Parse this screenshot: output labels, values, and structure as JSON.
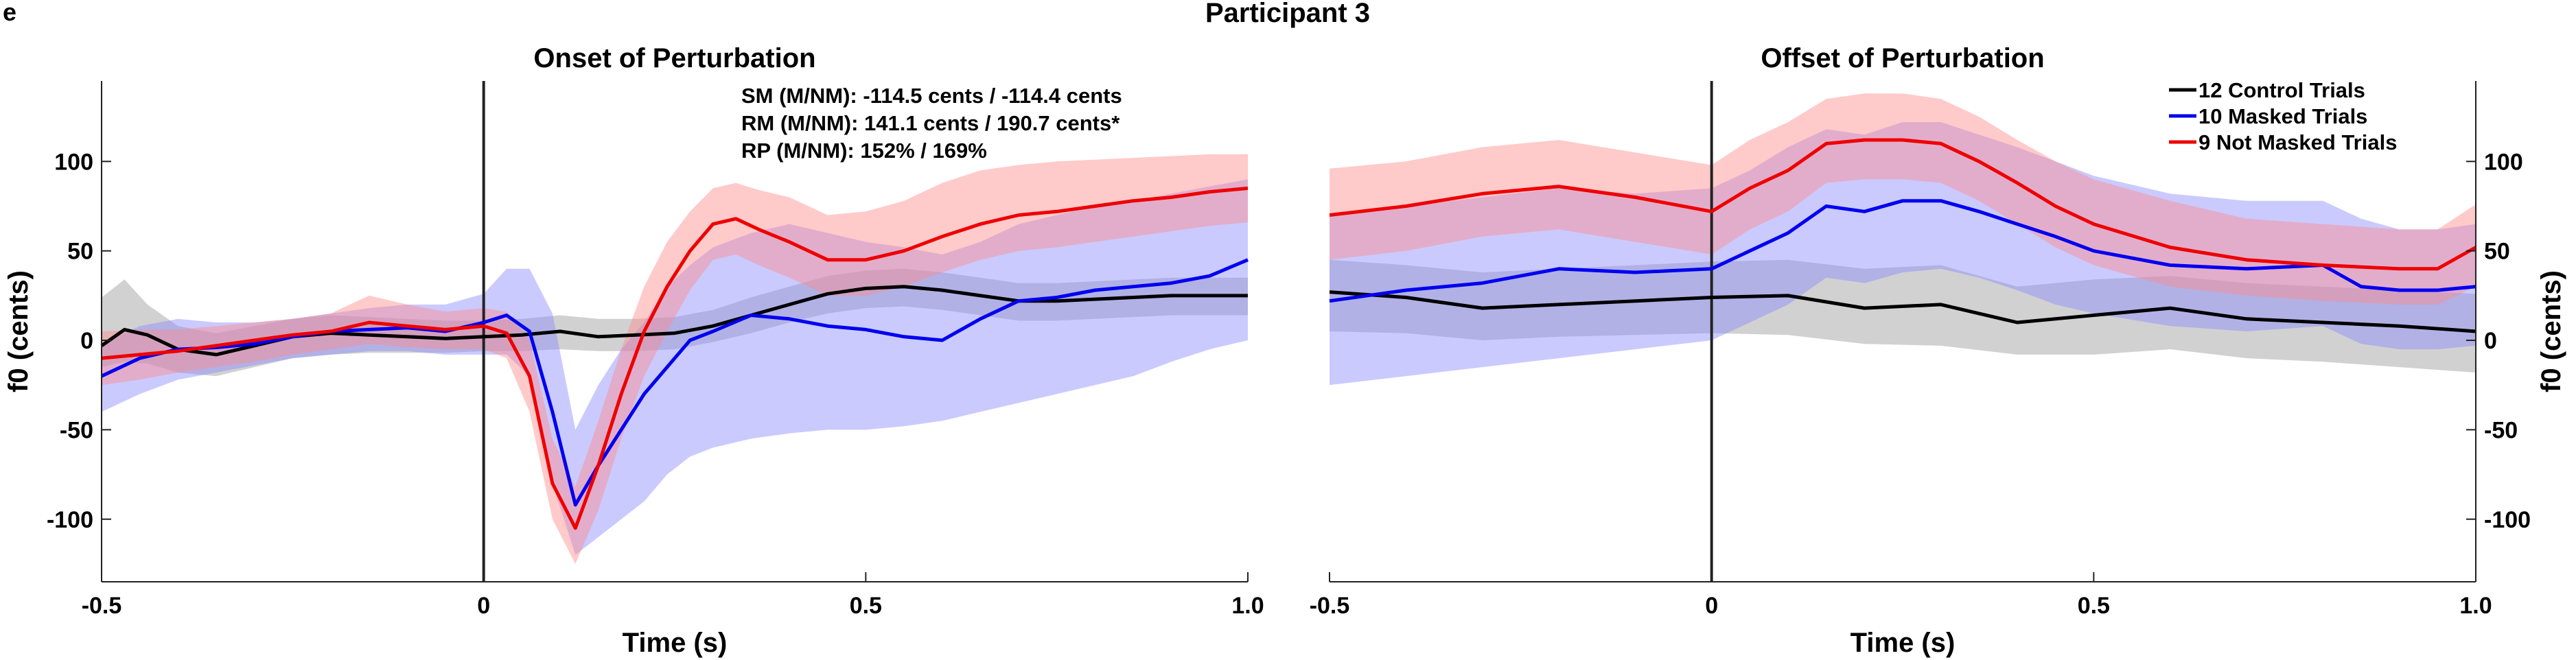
{
  "figure": {
    "panel_letter": "e",
    "title": "Participant 3"
  },
  "colors": {
    "control": "#000000",
    "masked": "#0000ee",
    "not_masked": "#ee0000",
    "control_band": "#9a9a9a",
    "masked_band": "#8a8aff",
    "not_masked_band": "#ff8a8a"
  },
  "stats": {
    "sm": "SM (M/NM): -114.5 cents / -114.4 cents",
    "rm": "RM (M/NM): 141.1 cents / 190.7 cents*",
    "rp": "RP (M/NM): 152% / 169%"
  },
  "legend": {
    "control": "12 Control Trials",
    "masked": "10 Masked Trials",
    "not_masked": "9 Not Masked Trials"
  },
  "chart_data": [
    {
      "type": "line",
      "title": "Onset of Perturbation",
      "xlabel": "Time (s)",
      "ylabel": "f0 (cents)",
      "xlim": [
        -0.5,
        1.0
      ],
      "ylim": [
        -135,
        145
      ],
      "xticks": [
        -0.5,
        0,
        0.5,
        1.0
      ],
      "xtick_labels": [
        "-0.5",
        "0",
        "0.5",
        "1.0"
      ],
      "yticks": [
        -100,
        -50,
        0,
        50,
        100
      ],
      "ytick_labels": [
        "-100",
        "-50",
        "0",
        "50",
        "100"
      ],
      "y_axis_side": "left",
      "vline_x": 0,
      "series": [
        {
          "name": "12 Control Trials",
          "key": "control",
          "x": [
            -0.5,
            -0.47,
            -0.44,
            -0.4,
            -0.35,
            -0.3,
            -0.25,
            -0.2,
            -0.15,
            -0.1,
            -0.05,
            0,
            0.05,
            0.1,
            0.15,
            0.2,
            0.25,
            0.3,
            0.35,
            0.4,
            0.45,
            0.5,
            0.55,
            0.6,
            0.65,
            0.7,
            0.75,
            0.8,
            0.85,
            0.9,
            0.95,
            1.0
          ],
          "values": [
            -3,
            6,
            3,
            -5,
            -8,
            -3,
            2,
            4,
            3,
            2,
            1,
            2,
            3,
            5,
            2,
            3,
            4,
            8,
            14,
            20,
            26,
            29,
            30,
            28,
            25,
            22,
            22,
            23,
            24,
            25,
            25,
            25
          ],
          "lower": [
            -15,
            -12,
            -13,
            -18,
            -20,
            -15,
            -10,
            -8,
            -7,
            -7,
            -7,
            -6,
            -6,
            -5,
            -6,
            -6,
            -5,
            -1,
            4,
            10,
            15,
            18,
            19,
            17,
            14,
            11,
            11,
            12,
            13,
            14,
            14,
            14
          ],
          "upper": [
            24,
            34,
            20,
            8,
            4,
            8,
            12,
            14,
            13,
            12,
            11,
            11,
            12,
            14,
            12,
            12,
            13,
            17,
            24,
            30,
            36,
            39,
            40,
            38,
            35,
            32,
            32,
            33,
            34,
            35,
            35,
            35
          ]
        },
        {
          "name": "10 Masked Trials",
          "key": "masked",
          "x": [
            -0.5,
            -0.45,
            -0.4,
            -0.35,
            -0.3,
            -0.25,
            -0.2,
            -0.15,
            -0.1,
            -0.05,
            0,
            0.03,
            0.06,
            0.09,
            0.12,
            0.15,
            0.18,
            0.21,
            0.24,
            0.27,
            0.3,
            0.35,
            0.4,
            0.45,
            0.5,
            0.55,
            0.6,
            0.65,
            0.7,
            0.75,
            0.8,
            0.85,
            0.9,
            0.95,
            1.0
          ],
          "values": [
            -20,
            -10,
            -5,
            -4,
            -2,
            2,
            5,
            6,
            7,
            5,
            10,
            14,
            5,
            -40,
            -92,
            -70,
            -50,
            -30,
            -15,
            0,
            5,
            14,
            12,
            8,
            6,
            2,
            0,
            12,
            22,
            24,
            28,
            30,
            32,
            36,
            45
          ],
          "lower": [
            -40,
            -30,
            -22,
            -18,
            -14,
            -10,
            -8,
            -6,
            -6,
            -8,
            -8,
            -8,
            -20,
            -80,
            -120,
            -110,
            -100,
            -90,
            -75,
            -65,
            -60,
            -55,
            -52,
            -50,
            -50,
            -48,
            -45,
            -40,
            -35,
            -30,
            -25,
            -20,
            -12,
            -5,
            0
          ],
          "upper": [
            -2,
            8,
            12,
            10,
            10,
            12,
            15,
            18,
            20,
            20,
            26,
            40,
            40,
            15,
            -50,
            -25,
            -5,
            10,
            30,
            42,
            52,
            60,
            65,
            60,
            55,
            52,
            48,
            55,
            65,
            70,
            75,
            78,
            82,
            86,
            90
          ]
        },
        {
          "name": "9 Not Masked Trials",
          "key": "not_masked",
          "x": [
            -0.5,
            -0.45,
            -0.4,
            -0.35,
            -0.3,
            -0.25,
            -0.2,
            -0.15,
            -0.1,
            -0.05,
            0,
            0.03,
            0.06,
            0.09,
            0.12,
            0.15,
            0.18,
            0.21,
            0.24,
            0.27,
            0.3,
            0.33,
            0.36,
            0.4,
            0.45,
            0.5,
            0.55,
            0.6,
            0.65,
            0.7,
            0.75,
            0.8,
            0.85,
            0.9,
            0.95,
            1.0
          ],
          "values": [
            -10,
            -8,
            -6,
            -3,
            0,
            3,
            5,
            10,
            8,
            6,
            8,
            4,
            -20,
            -80,
            -105,
            -70,
            -30,
            5,
            30,
            50,
            65,
            68,
            62,
            55,
            45,
            45,
            50,
            58,
            65,
            70,
            72,
            75,
            78,
            80,
            83,
            85
          ],
          "lower": [
            -25,
            -22,
            -18,
            -15,
            -12,
            -8,
            -5,
            -2,
            -4,
            -5,
            -5,
            -10,
            -40,
            -100,
            -125,
            -95,
            -55,
            -20,
            5,
            28,
            45,
            48,
            42,
            35,
            25,
            25,
            30,
            38,
            45,
            50,
            52,
            55,
            58,
            61,
            64,
            66
          ],
          "upper": [
            5,
            6,
            6,
            8,
            10,
            12,
            15,
            25,
            20,
            16,
            18,
            16,
            0,
            -55,
            -82,
            -45,
            -5,
            30,
            55,
            72,
            85,
            88,
            84,
            80,
            70,
            72,
            78,
            88,
            95,
            98,
            100,
            101,
            102,
            103,
            104,
            104
          ]
        }
      ]
    },
    {
      "type": "line",
      "title": "Offset of Perturbation",
      "xlabel": "Time (s)",
      "ylabel": "f0 (cents)",
      "xlim": [
        -0.5,
        1.0
      ],
      "ylim": [
        -135,
        145
      ],
      "xticks": [
        -0.5,
        0,
        0.5,
        1.0
      ],
      "xtick_labels": [
        "-0.5",
        "0",
        "0.5",
        "1.0"
      ],
      "yticks": [
        -100,
        -50,
        0,
        50,
        100
      ],
      "ytick_labels": [
        "-100",
        "-50",
        "0",
        "50",
        "100"
      ],
      "y_axis_side": "right",
      "vline_x": 0,
      "series": [
        {
          "name": "12 Control Trials",
          "key": "control",
          "x": [
            -0.5,
            -0.4,
            -0.3,
            -0.2,
            -0.1,
            0,
            0.1,
            0.2,
            0.3,
            0.4,
            0.5,
            0.6,
            0.7,
            0.8,
            0.9,
            1.0
          ],
          "values": [
            27,
            24,
            18,
            20,
            22,
            24,
            25,
            18,
            20,
            10,
            14,
            18,
            12,
            10,
            8,
            5
          ],
          "lower": [
            5,
            4,
            0,
            2,
            3,
            4,
            3,
            -2,
            -3,
            -8,
            -8,
            -5,
            -10,
            -12,
            -15,
            -18
          ],
          "upper": [
            45,
            42,
            38,
            40,
            42,
            44,
            45,
            40,
            42,
            30,
            34,
            36,
            32,
            30,
            28,
            26
          ]
        },
        {
          "name": "10 Masked Trials",
          "key": "masked",
          "x": [
            -0.5,
            -0.4,
            -0.3,
            -0.2,
            -0.1,
            0,
            0.05,
            0.1,
            0.15,
            0.2,
            0.25,
            0.3,
            0.35,
            0.4,
            0.45,
            0.5,
            0.6,
            0.7,
            0.8,
            0.85,
            0.9,
            0.95,
            1.0
          ],
          "values": [
            22,
            28,
            32,
            40,
            38,
            40,
            50,
            60,
            75,
            72,
            78,
            78,
            72,
            65,
            58,
            50,
            42,
            40,
            42,
            30,
            28,
            28,
            30
          ],
          "lower": [
            -25,
            -20,
            -15,
            -10,
            -5,
            0,
            10,
            20,
            35,
            32,
            38,
            40,
            35,
            28,
            20,
            15,
            8,
            5,
            8,
            -2,
            -5,
            -5,
            -3
          ],
          "upper": [
            70,
            75,
            80,
            85,
            82,
            85,
            95,
            108,
            118,
            115,
            122,
            122,
            115,
            108,
            100,
            92,
            82,
            78,
            78,
            68,
            62,
            62,
            65
          ]
        },
        {
          "name": "9 Not Masked Trials",
          "key": "not_masked",
          "x": [
            -0.5,
            -0.4,
            -0.3,
            -0.2,
            -0.1,
            0,
            0.05,
            0.1,
            0.15,
            0.2,
            0.25,
            0.3,
            0.35,
            0.4,
            0.45,
            0.5,
            0.6,
            0.7,
            0.8,
            0.9,
            0.95,
            1.0
          ],
          "values": [
            70,
            75,
            82,
            86,
            80,
            72,
            85,
            95,
            110,
            112,
            112,
            110,
            100,
            88,
            75,
            65,
            52,
            45,
            42,
            40,
            40,
            52
          ],
          "lower": [
            45,
            50,
            58,
            62,
            55,
            48,
            62,
            72,
            88,
            90,
            90,
            88,
            78,
            65,
            52,
            42,
            30,
            25,
            22,
            20,
            20,
            30
          ],
          "upper": [
            96,
            100,
            108,
            112,
            105,
            98,
            112,
            122,
            135,
            138,
            138,
            135,
            125,
            112,
            100,
            90,
            78,
            68,
            65,
            62,
            62,
            76
          ]
        }
      ]
    }
  ]
}
